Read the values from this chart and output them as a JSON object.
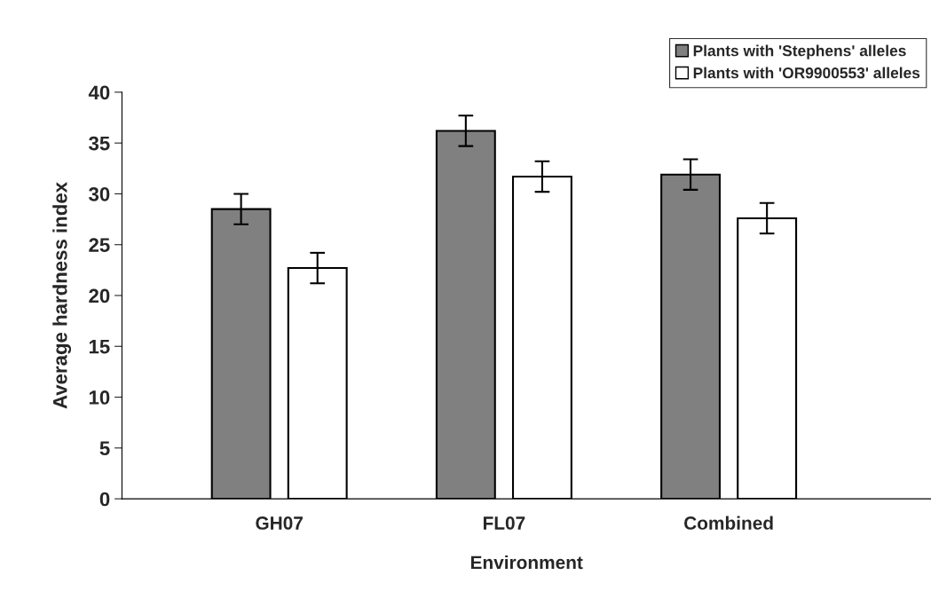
{
  "chart_data": {
    "type": "bar",
    "xlabel": "Environment",
    "ylabel": "Average hardness index",
    "categories": [
      "GH07",
      "FL07",
      "Combined"
    ],
    "series": [
      {
        "name": "Plants with 'Stephens' alleles",
        "color": "#808080",
        "values": [
          28.5,
          36.2,
          31.9
        ],
        "errors": [
          1.5,
          1.5,
          1.5
        ]
      },
      {
        "name": "Plants with 'OR9900553' alleles",
        "color": "#ffffff",
        "values": [
          22.7,
          31.7,
          27.6
        ],
        "errors": [
          1.5,
          1.5,
          1.5
        ]
      }
    ],
    "ylim": [
      0,
      40
    ],
    "yticks": [
      0,
      5,
      10,
      15,
      20,
      25,
      30,
      35,
      40
    ],
    "grid": false,
    "legend": "top right"
  }
}
